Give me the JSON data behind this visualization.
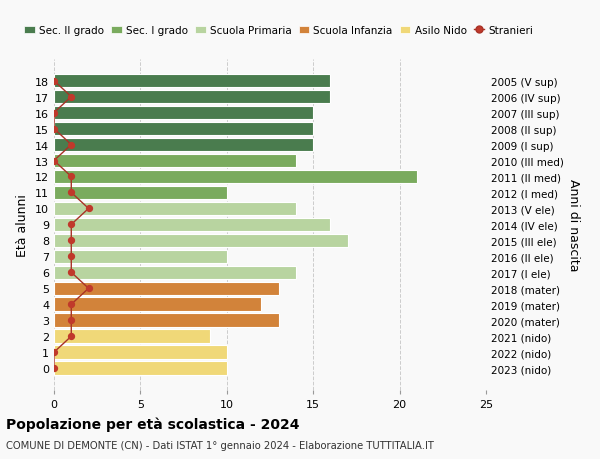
{
  "ages": [
    18,
    17,
    16,
    15,
    14,
    13,
    12,
    11,
    10,
    9,
    8,
    7,
    6,
    5,
    4,
    3,
    2,
    1,
    0
  ],
  "right_labels": [
    "2005 (V sup)",
    "2006 (IV sup)",
    "2007 (III sup)",
    "2008 (II sup)",
    "2009 (I sup)",
    "2010 (III med)",
    "2011 (II med)",
    "2012 (I med)",
    "2013 (V ele)",
    "2014 (IV ele)",
    "2015 (III ele)",
    "2016 (II ele)",
    "2017 (I ele)",
    "2018 (mater)",
    "2019 (mater)",
    "2020 (mater)",
    "2021 (nido)",
    "2022 (nido)",
    "2023 (nido)"
  ],
  "bar_values": [
    16,
    16,
    15,
    15,
    15,
    14,
    21,
    10,
    14,
    16,
    17,
    10,
    14,
    13,
    12,
    13,
    9,
    10,
    10
  ],
  "bar_colors": [
    "#4a7c4e",
    "#4a7c4e",
    "#4a7c4e",
    "#4a7c4e",
    "#4a7c4e",
    "#7aab5e",
    "#7aab5e",
    "#7aab5e",
    "#b8d4a0",
    "#b8d4a0",
    "#b8d4a0",
    "#b8d4a0",
    "#b8d4a0",
    "#d2833a",
    "#d2833a",
    "#d2833a",
    "#f0d878",
    "#f0d878",
    "#f0d878"
  ],
  "stranieri_values": [
    0,
    1,
    0,
    0,
    1,
    0,
    1,
    1,
    2,
    1,
    1,
    1,
    1,
    2,
    1,
    1,
    1,
    0,
    0
  ],
  "title": "Popolazione per età scolastica - 2024",
  "subtitle": "COMUNE DI DEMONTE (CN) - Dati ISTAT 1° gennaio 2024 - Elaborazione TUTTITALIA.IT",
  "ylabel": "Età alunni",
  "right_ylabel": "Anni di nascita",
  "xlim": [
    0,
    25
  ],
  "xticks": [
    0,
    5,
    10,
    15,
    20,
    25
  ],
  "legend_labels": [
    "Sec. II grado",
    "Sec. I grado",
    "Scuola Primaria",
    "Scuola Infanzia",
    "Asilo Nido",
    "Stranieri"
  ],
  "legend_colors": [
    "#4a7c4e",
    "#7aab5e",
    "#b8d4a0",
    "#d2833a",
    "#f0d878",
    "#c0392b"
  ],
  "bar_edge_color": "white",
  "bg_color": "#f9f9f9",
  "grid_color": "#cccccc",
  "stranieri_color": "#c0392b",
  "stranieri_line_color": "#a93226"
}
